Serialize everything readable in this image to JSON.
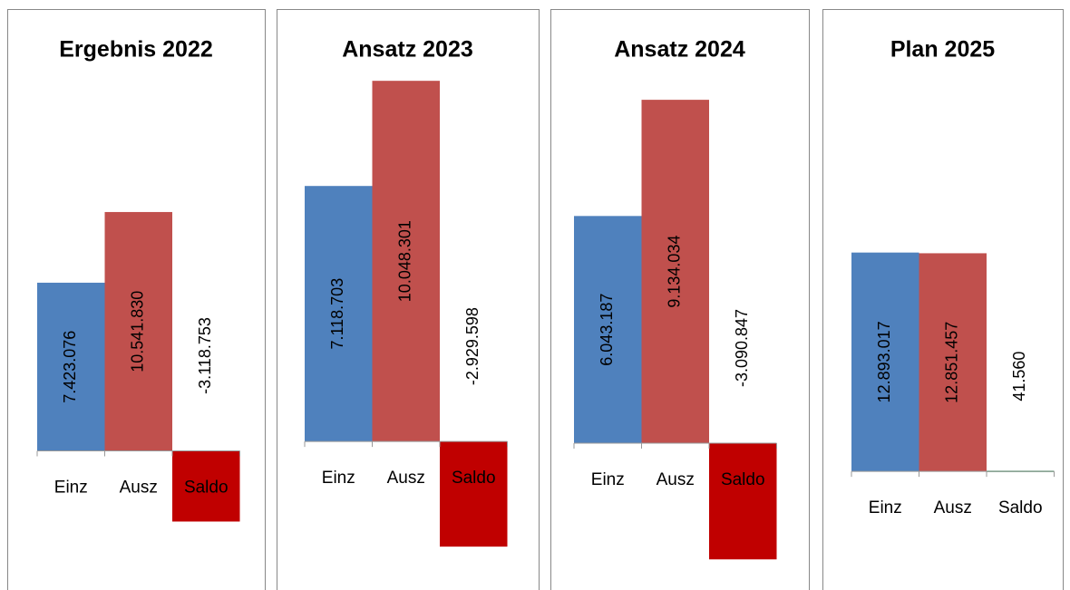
{
  "chart_data": [
    {
      "type": "bar",
      "title": "Ergebnis 2022",
      "categories": [
        "Einz",
        "Ausz",
        "Saldo"
      ],
      "values": [
        7423076,
        10541830,
        -3118753
      ],
      "value_labels": [
        "7.423.076",
        "10.541.830",
        "-3.118.753"
      ],
      "colors": [
        "#4f81bd",
        "#c0504d",
        "#c00000"
      ],
      "ylim": [
        -5700000,
        16700000
      ]
    },
    {
      "type": "bar",
      "title": "Ansatz 2023",
      "categories": [
        "Einz",
        "Ausz",
        "Saldo"
      ],
      "values": [
        7118703,
        10048301,
        -2929598
      ],
      "value_labels": [
        "7.118.703",
        "10.048.301",
        "-2.929.598"
      ],
      "colors": [
        "#4f81bd",
        "#c0504d",
        "#c00000"
      ],
      "ylim": [
        -3860000,
        10280000
      ]
    },
    {
      "type": "bar",
      "title": "Ansatz 2024",
      "categories": [
        "Einz",
        "Ausz",
        "Saldo"
      ],
      "values": [
        6043187,
        9134034,
        -3090847
      ],
      "value_labels": [
        "6.043.187",
        "9.134.034",
        "-3.090.847"
      ],
      "colors": [
        "#4f81bd",
        "#c0504d",
        "#c00000"
      ],
      "ylim": [
        -3640000,
        9860000
      ]
    },
    {
      "type": "bar",
      "title": "Plan 2025",
      "categories": [
        "Einz",
        "Ausz",
        "Saldo"
      ],
      "values": [
        12893017,
        12851457,
        41560
      ],
      "value_labels": [
        "12.893.017",
        "12.851.457",
        "41.560"
      ],
      "colors": [
        "#4f81bd",
        "#c0504d",
        "#4aa36b"
      ],
      "ylim": [
        -6400000,
        23500000
      ]
    }
  ]
}
